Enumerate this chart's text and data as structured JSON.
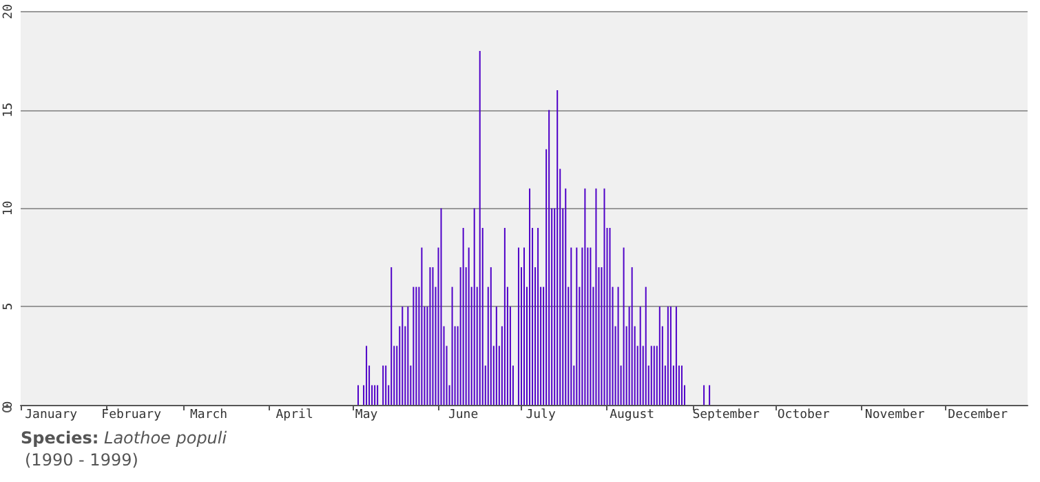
{
  "chart_data": {
    "type": "bar",
    "x": [
      "--05-03",
      "--05-04",
      "--05-05",
      "--05-06",
      "--05-07",
      "--05-08",
      "--05-09",
      "--05-10",
      "--05-11",
      "--05-12",
      "--05-13",
      "--05-14",
      "--05-15",
      "--05-16",
      "--05-17",
      "--05-18",
      "--05-19",
      "--05-20",
      "--05-21",
      "--05-22",
      "--05-23",
      "--05-24",
      "--05-25",
      "--05-26",
      "--05-27",
      "--05-28",
      "--05-29",
      "--05-30",
      "--05-31",
      "--06-01",
      "--06-02",
      "--06-03",
      "--06-04",
      "--06-05",
      "--06-06",
      "--06-07",
      "--06-08",
      "--06-09",
      "--06-10",
      "--06-11",
      "--06-12",
      "--06-13",
      "--06-14",
      "--06-15",
      "--06-16",
      "--06-17",
      "--06-18",
      "--06-19",
      "--06-20",
      "--06-21",
      "--06-22",
      "--06-23",
      "--06-24",
      "--06-25",
      "--06-26",
      "--06-27",
      "--06-28",
      "--06-29",
      "--06-30",
      "--07-01",
      "--07-02",
      "--07-03",
      "--07-04",
      "--07-05",
      "--07-06",
      "--07-07",
      "--07-08",
      "--07-09",
      "--07-10",
      "--07-11",
      "--07-12",
      "--07-13",
      "--07-14",
      "--07-15",
      "--07-16",
      "--07-17",
      "--07-18",
      "--07-19",
      "--07-20",
      "--07-21",
      "--07-22",
      "--07-23",
      "--07-24",
      "--07-25",
      "--07-26",
      "--07-27",
      "--07-28",
      "--07-29",
      "--07-30",
      "--07-31",
      "--08-01",
      "--08-02",
      "--08-03",
      "--08-04",
      "--08-05",
      "--08-06",
      "--08-07",
      "--08-08",
      "--08-09",
      "--08-10",
      "--08-11",
      "--08-12",
      "--08-13",
      "--08-14",
      "--08-15",
      "--08-16",
      "--08-17",
      "--08-18",
      "--08-19",
      "--08-20",
      "--08-21",
      "--08-22",
      "--08-23",
      "--08-24",
      "--08-25",
      "--08-26",
      "--08-27",
      "--08-28",
      "--08-29",
      "--08-30",
      "--08-31",
      "--09-01",
      "--09-02",
      "--09-03",
      "--09-04",
      "--09-05",
      "--09-06",
      "--09-07"
    ],
    "values": [
      1,
      0,
      1,
      3,
      2,
      1,
      1,
      1,
      0,
      2,
      2,
      1,
      7,
      3,
      3,
      4,
      5,
      4,
      5,
      2,
      6,
      6,
      6,
      8,
      5,
      5,
      7,
      7,
      6,
      8,
      10,
      4,
      3,
      1,
      6,
      4,
      4,
      7,
      9,
      7,
      8,
      6,
      10,
      6,
      18,
      9,
      2,
      6,
      7,
      3,
      5,
      3,
      4,
      9,
      6,
      5,
      2,
      0,
      8,
      7,
      8,
      6,
      11,
      9,
      7,
      9,
      6,
      6,
      13,
      15,
      10,
      10,
      16,
      12,
      10,
      11,
      6,
      8,
      2,
      8,
      6,
      8,
      11,
      8,
      8,
      6,
      11,
      7,
      7,
      11,
      9,
      9,
      6,
      4,
      6,
      2,
      8,
      4,
      5,
      7,
      4,
      3,
      5,
      3,
      6,
      2,
      3,
      3,
      3,
      5,
      4,
      2,
      5,
      5,
      2,
      5,
      2,
      2,
      1,
      0,
      0,
      0,
      0,
      0,
      0,
      1,
      0,
      1
    ],
    "color": "#4f00c8",
    "xlim": [
      "--01-01",
      "--12-31"
    ],
    "xticks": [
      {
        "value": "--01-01",
        "label": null
      },
      {
        "value": "--01-12",
        "label": "January"
      },
      {
        "value": "--02-01",
        "label": null
      },
      {
        "value": "--02-10",
        "label": "February"
      },
      {
        "value": "--03-01",
        "label": null
      },
      {
        "value": "--03-10",
        "label": "March"
      },
      {
        "value": "--04-01",
        "label": null
      },
      {
        "value": "--04-10",
        "label": "April"
      },
      {
        "value": "--05-01",
        "label": null
      },
      {
        "value": "--05-06",
        "label": "May"
      },
      {
        "value": "--06-01",
        "label": null
      },
      {
        "value": "--06-10",
        "label": "June"
      },
      {
        "value": "--07-01",
        "label": null
      },
      {
        "value": "--07-08",
        "label": "July"
      },
      {
        "value": "--08-01",
        "label": null
      },
      {
        "value": "--08-10",
        "label": "August"
      },
      {
        "value": "--09-01",
        "label": null
      },
      {
        "value": "--09-13",
        "label": "September"
      },
      {
        "value": "--10-01",
        "label": null
      },
      {
        "value": "--10-11",
        "label": "October"
      },
      {
        "value": "--11-01",
        "label": null
      },
      {
        "value": "--11-13",
        "label": "November"
      },
      {
        "value": "--12-01",
        "label": null
      },
      {
        "value": "--12-13",
        "label": "December"
      }
    ],
    "ylim": [
      0,
      20
    ],
    "yticks": [
      0,
      5,
      10,
      15,
      20
    ],
    "grid": "y",
    "annotations": [
      "Species: Laothoe populi",
      "(1990 - 1999)"
    ]
  }
}
